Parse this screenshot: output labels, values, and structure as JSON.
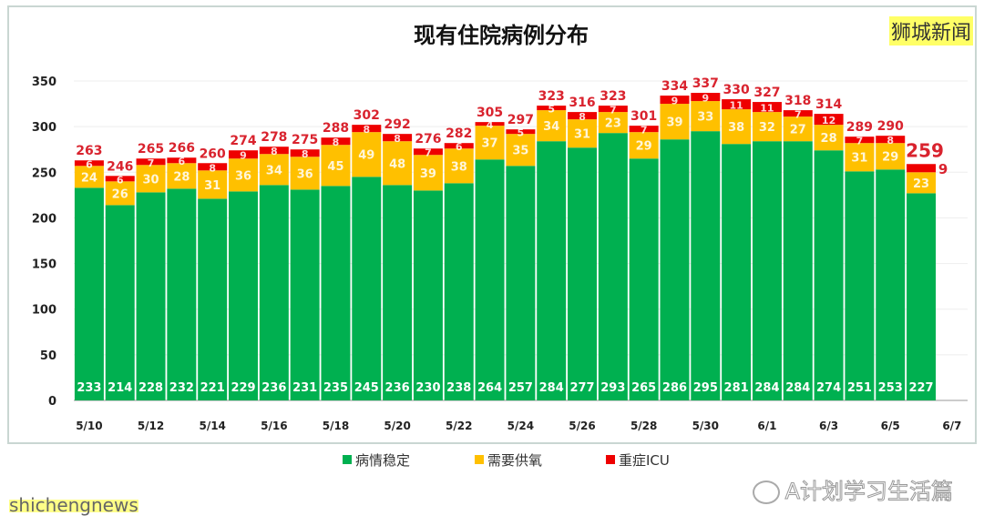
{
  "brand": "狮城新闻",
  "watermark": "A计划学习生活篇",
  "footer_text": "shichengnews",
  "chart_data": {
    "type": "bar",
    "stacked": true,
    "title": "现有住院病例分布",
    "categories": [
      "5/10",
      "5/11",
      "5/12",
      "5/13",
      "5/14",
      "5/15",
      "5/16",
      "5/17",
      "5/18",
      "5/19",
      "5/20",
      "5/21",
      "5/22",
      "5/23",
      "5/24",
      "5/25",
      "5/26",
      "5/27",
      "5/28",
      "5/29",
      "5/30",
      "5/31",
      "6/1",
      "6/2",
      "6/3",
      "6/4",
      "6/5",
      "6/6"
    ],
    "x_tick_labels": [
      "5/10",
      "5/12",
      "5/14",
      "5/16",
      "5/18",
      "5/20",
      "5/22",
      "5/24",
      "5/26",
      "5/28",
      "5/30",
      "6/1",
      "6/3",
      "6/5",
      "6/7"
    ],
    "series": [
      {
        "name": "病情稳定",
        "color": "#00b050",
        "values": [
          233,
          214,
          228,
          232,
          221,
          229,
          236,
          231,
          235,
          245,
          236,
          230,
          238,
          264,
          257,
          284,
          277,
          293,
          265,
          286,
          295,
          281,
          284,
          284,
          274,
          251,
          253,
          227
        ]
      },
      {
        "name": "需要供氧",
        "color": "#ffc000",
        "values": [
          24,
          26,
          30,
          28,
          31,
          36,
          34,
          36,
          45,
          49,
          48,
          39,
          38,
          37,
          35,
          34,
          31,
          23,
          29,
          39,
          33,
          38,
          32,
          27,
          28,
          31,
          29,
          23
        ]
      },
      {
        "name": "重症ICU",
        "color": "#ee0000",
        "values": [
          6,
          6,
          7,
          6,
          8,
          9,
          8,
          8,
          8,
          8,
          8,
          7,
          6,
          4,
          5,
          5,
          8,
          7,
          7,
          9,
          9,
          11,
          11,
          7,
          12,
          7,
          8,
          9
        ]
      }
    ],
    "totals": [
      263,
      246,
      265,
      266,
      260,
      274,
      278,
      275,
      288,
      302,
      292,
      276,
      282,
      305,
      297,
      323,
      316,
      323,
      301,
      334,
      337,
      330,
      327,
      318,
      314,
      289,
      290,
      259
    ],
    "ylim": [
      0,
      350
    ],
    "yticks": [
      0,
      50,
      100,
      150,
      200,
      250,
      300,
      350
    ],
    "grid": true,
    "legend": "bottom",
    "total_label_color": "#d9232e"
  }
}
